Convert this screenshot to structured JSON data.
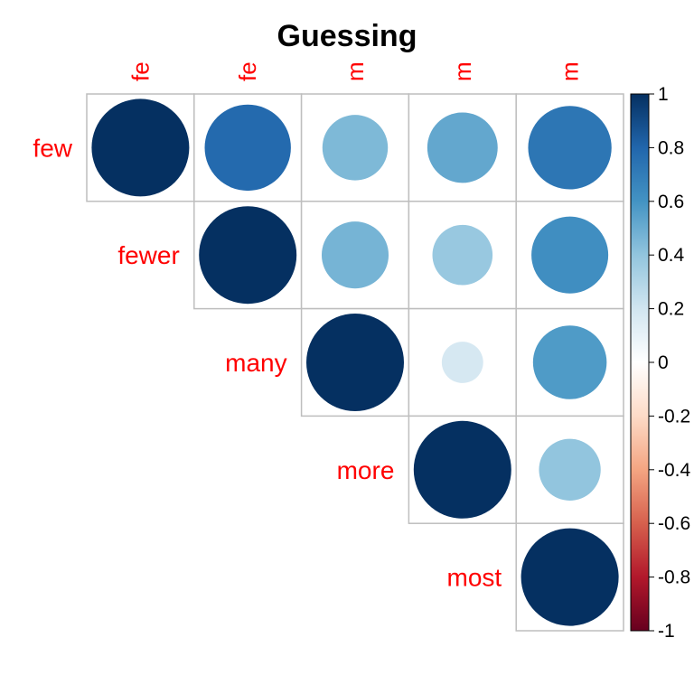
{
  "chart_data": {
    "type": "heatmap",
    "title": "Guessing",
    "variables": [
      "few",
      "fewer",
      "many",
      "more",
      "most"
    ],
    "column_labels": [
      "fe",
      "fe",
      "m",
      "m",
      "m"
    ],
    "matrix": [
      [
        1.0,
        0.78,
        0.45,
        0.52,
        0.73
      ],
      [
        null,
        1.0,
        0.47,
        0.38,
        0.62
      ],
      [
        null,
        null,
        1.0,
        0.18,
        0.57
      ],
      [
        null,
        null,
        null,
        1.0,
        0.4
      ],
      [
        null,
        null,
        null,
        null,
        1.0
      ]
    ],
    "colorbar": {
      "range": [
        -1,
        1
      ],
      "ticks": [
        "1",
        "0.8",
        "0.6",
        "0.4",
        "0.2",
        "0",
        "-0.2",
        "-0.4",
        "-0.6",
        "-0.8",
        "-1"
      ]
    },
    "label_color": "#ff0000",
    "grid_color": "#bebebe",
    "palette": [
      "#67001F",
      "#B2182B",
      "#D6604D",
      "#F4A582",
      "#FDDBC7",
      "#FFFFFF",
      "#D1E5F0",
      "#92C5DE",
      "#4393C3",
      "#2166AC",
      "#053061"
    ]
  }
}
